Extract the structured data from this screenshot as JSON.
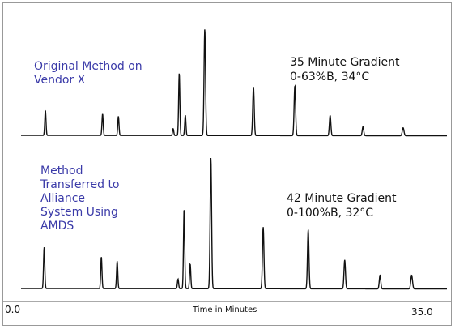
{
  "chart_data": {
    "type": "line",
    "xlabel": "Time in Minutes",
    "xlim": [
      0.0,
      35.0
    ],
    "x_tick_labels": [
      "0.0",
      "35.0"
    ],
    "grid": false,
    "panels": [
      {
        "name_label": "Original Method on\nVendor X",
        "conditions": "35 Minute Gradient\n0-63%B, 34°C",
        "baseline_drift": 0.6,
        "peaks": [
          {
            "t": 2.0,
            "h": 0.22,
            "w": 0.05
          },
          {
            "t": 6.7,
            "h": 0.19,
            "w": 0.05
          },
          {
            "t": 8.0,
            "h": 0.17,
            "w": 0.05
          },
          {
            "t": 12.5,
            "h": 0.06,
            "w": 0.05
          },
          {
            "t": 13.0,
            "h": 0.55,
            "w": 0.05
          },
          {
            "t": 13.5,
            "h": 0.18,
            "w": 0.05
          },
          {
            "t": 15.1,
            "h": 0.94,
            "w": 0.06
          },
          {
            "t": 19.1,
            "h": 0.43,
            "w": 0.06
          },
          {
            "t": 22.5,
            "h": 0.44,
            "w": 0.06
          },
          {
            "t": 25.4,
            "h": 0.18,
            "w": 0.06
          },
          {
            "t": 28.1,
            "h": 0.08,
            "w": 0.06
          },
          {
            "t": 31.4,
            "h": 0.07,
            "w": 0.07
          }
        ]
      },
      {
        "name_label": "Method\nTransferred to\nAlliance\nSystem Using\nAMDS",
        "conditions": "42 Minute Gradient\n0-100%B, 32°C",
        "baseline_drift": 0.6,
        "peaks": [
          {
            "t": 1.9,
            "h": 0.3,
            "w": 0.05
          },
          {
            "t": 6.6,
            "h": 0.23,
            "w": 0.05
          },
          {
            "t": 7.9,
            "h": 0.2,
            "w": 0.05
          },
          {
            "t": 12.9,
            "h": 0.07,
            "w": 0.05
          },
          {
            "t": 13.4,
            "h": 0.58,
            "w": 0.05
          },
          {
            "t": 13.9,
            "h": 0.18,
            "w": 0.05
          },
          {
            "t": 15.6,
            "h": 0.95,
            "w": 0.06
          },
          {
            "t": 19.9,
            "h": 0.45,
            "w": 0.06
          },
          {
            "t": 23.6,
            "h": 0.43,
            "w": 0.06
          },
          {
            "t": 26.6,
            "h": 0.21,
            "w": 0.06
          },
          {
            "t": 29.5,
            "h": 0.1,
            "w": 0.06
          },
          {
            "t": 32.1,
            "h": 0.1,
            "w": 0.07
          }
        ]
      }
    ]
  },
  "colors": {
    "trace": "#111111",
    "label_blue": "#3a3aa8",
    "frame": "#999999"
  }
}
